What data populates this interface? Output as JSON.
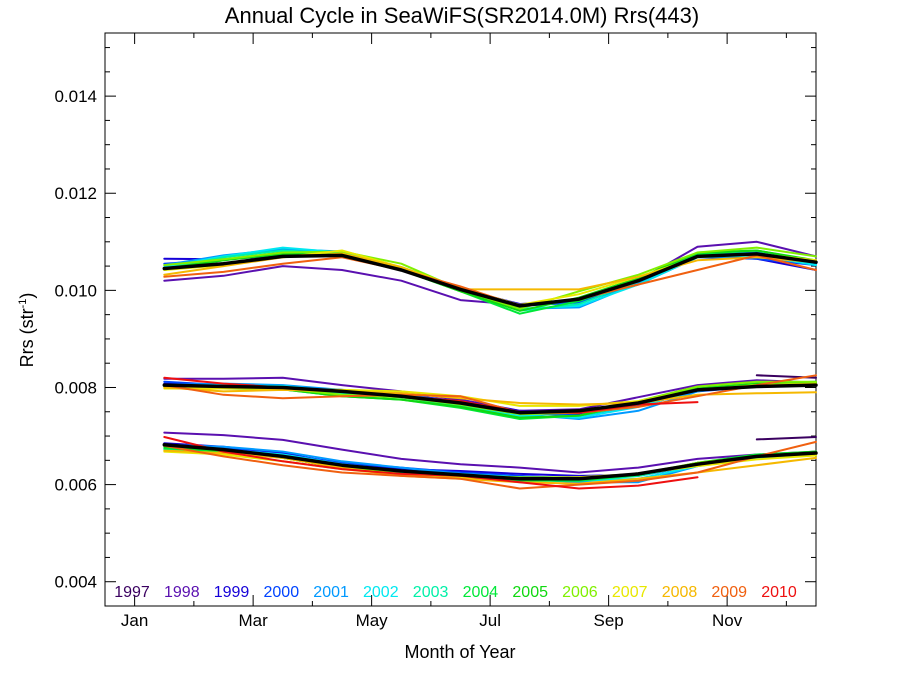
{
  "chart_data": {
    "type": "line",
    "title": "Annual Cycle in SeaWiFS(SR2014.0M) Rrs(443)",
    "xlabel": "Month of Year",
    "ylabel_main": "Rrs (str",
    "ylabel_sup": "-1",
    "ylabel_end": ")",
    "xlim": [
      0.5,
      12.5
    ],
    "ylim": [
      0.0035,
      0.0153
    ],
    "x_ticks": [
      {
        "x": 1,
        "label": "Jan"
      },
      {
        "x": 3,
        "label": "Mar"
      },
      {
        "x": 5,
        "label": "May"
      },
      {
        "x": 7,
        "label": "Jul"
      },
      {
        "x": 9,
        "label": "Sep"
      },
      {
        "x": 11,
        "label": "Nov"
      }
    ],
    "y_ticks": [
      {
        "y": 0.004,
        "label": "0.004"
      },
      {
        "y": 0.006,
        "label": "0.006"
      },
      {
        "y": 0.008,
        "label": "0.008"
      },
      {
        "y": 0.01,
        "label": "0.010"
      },
      {
        "y": 0.012,
        "label": "0.012"
      },
      {
        "y": 0.014,
        "label": "0.014"
      }
    ],
    "grid": false,
    "legend_position": "bottom, inside plot",
    "months": [
      1.5,
      2.5,
      3.5,
      4.5,
      5.5,
      6.5,
      7.5,
      8.5,
      9.5,
      10.5,
      11.5,
      12.5
    ],
    "series": [
      {
        "name": "1997",
        "color": "#3a0060",
        "width": 2,
        "groups": [
          [
            null,
            null,
            null,
            null,
            null,
            null,
            null,
            null,
            null,
            null,
            null,
            null
          ],
          [
            null,
            null,
            null,
            null,
            null,
            null,
            null,
            null,
            null,
            null,
            0.00825,
            0.0082
          ],
          [
            null,
            null,
            null,
            null,
            null,
            null,
            null,
            null,
            null,
            null,
            0.00693,
            0.00698
          ]
        ]
      },
      {
        "name": "1998",
        "color": "#5a10b0",
        "width": 2,
        "groups": [
          [
            0.0102,
            0.0103,
            0.0105,
            0.01042,
            0.0102,
            0.0098,
            0.0097,
            0.0098,
            0.0102,
            0.0109,
            0.011,
            0.0107
          ],
          [
            0.00818,
            0.00818,
            0.0082,
            0.00805,
            0.00792,
            0.00775,
            0.00752,
            0.00755,
            0.0078,
            0.00805,
            0.00815,
            0.0081
          ],
          [
            0.00707,
            0.00702,
            0.00692,
            0.00672,
            0.00653,
            0.00642,
            0.00635,
            0.00625,
            0.00635,
            0.00653,
            0.00662,
            0.00668
          ]
        ]
      },
      {
        "name": "1999",
        "color": "#1500d8",
        "width": 2,
        "groups": [
          [
            0.01065,
            0.01064,
            0.01072,
            0.01071,
            0.01042,
            0.01002,
            0.00972,
            0.00978,
            0.01012,
            0.01072,
            0.01065,
            0.01042
          ],
          [
            0.00808,
            0.00804,
            0.00803,
            0.00792,
            0.00785,
            0.00772,
            0.00752,
            0.00745,
            0.00765,
            0.00795,
            0.00805,
            0.00808
          ],
          [
            0.00685,
            0.00678,
            0.00665,
            0.00642,
            0.00632,
            0.00628,
            0.00622,
            0.00618,
            0.0062,
            0.00642,
            0.00658,
            0.00665
          ]
        ]
      },
      {
        "name": "2000",
        "color": "#0044ff",
        "width": 2,
        "groups": [
          [
            0.01055,
            0.01063,
            0.01078,
            0.01074,
            0.01042,
            0.01002,
            0.00968,
            0.00975,
            0.01012,
            0.01068,
            0.01065,
            0.01052
          ],
          [
            0.00812,
            0.00805,
            0.00802,
            0.00795,
            0.00788,
            0.00768,
            0.00748,
            0.00742,
            0.00762,
            0.00792,
            0.00802,
            0.00806
          ],
          [
            0.00683,
            0.00675,
            0.00662,
            0.00645,
            0.00635,
            0.00625,
            0.00618,
            0.00612,
            0.00618,
            0.0064,
            0.00655,
            0.00662
          ]
        ]
      },
      {
        "name": "2001",
        "color": "#0099ff",
        "width": 2,
        "groups": [
          [
            0.01052,
            0.01072,
            0.01085,
            0.0108,
            0.01042,
            0.01002,
            0.00962,
            0.00965,
            0.01015,
            0.01072,
            0.01078,
            0.01055
          ],
          [
            0.00805,
            0.00808,
            0.00805,
            0.00795,
            0.00785,
            0.00768,
            0.00745,
            0.00735,
            0.00752,
            0.00792,
            0.00808,
            0.00812
          ],
          [
            0.00682,
            0.00678,
            0.00668,
            0.00648,
            0.00635,
            0.00622,
            0.00612,
            0.00605,
            0.00605,
            0.00638,
            0.00658,
            0.00665
          ]
        ]
      },
      {
        "name": "2002",
        "color": "#00e8f0",
        "width": 2,
        "groups": [
          [
            0.01048,
            0.0107,
            0.01088,
            0.01078,
            0.01045,
            0.01002,
            0.00962,
            0.00968,
            0.01012,
            0.01068,
            0.01072,
            0.01052
          ],
          [
            0.00803,
            0.00805,
            0.00803,
            0.00792,
            0.00782,
            0.00765,
            0.00742,
            0.00738,
            0.0076,
            0.00795,
            0.00805,
            0.00808
          ],
          [
            0.00678,
            0.00672,
            0.00662,
            0.00642,
            0.00628,
            0.00622,
            0.00615,
            0.00608,
            0.00612,
            0.00638,
            0.00655,
            0.00665
          ]
        ]
      },
      {
        "name": "2003",
        "color": "#00f0a8",
        "width": 2,
        "groups": [
          [
            0.01045,
            0.01068,
            0.01082,
            0.01076,
            0.01048,
            0.01005,
            0.00958,
            0.00972,
            0.01018,
            0.01072,
            0.01075,
            0.01058
          ],
          [
            0.00802,
            0.00802,
            0.008,
            0.00788,
            0.0078,
            0.00762,
            0.00738,
            0.00742,
            0.00765,
            0.00795,
            0.00805,
            0.00808
          ],
          [
            0.00672,
            0.00668,
            0.00658,
            0.00638,
            0.00625,
            0.00618,
            0.00612,
            0.00608,
            0.00618,
            0.00642,
            0.00658,
            0.00665
          ]
        ]
      },
      {
        "name": "2004",
        "color": "#00e838",
        "width": 2,
        "groups": [
          [
            0.01042,
            0.01062,
            0.01078,
            0.01075,
            0.01042,
            0.00998,
            0.00952,
            0.00978,
            0.01022,
            0.01075,
            0.01082,
            0.0106
          ],
          [
            0.00802,
            0.008,
            0.00796,
            0.00782,
            0.00775,
            0.00758,
            0.00735,
            0.00742,
            0.00768,
            0.00798,
            0.00808,
            0.0081
          ],
          [
            0.00675,
            0.00668,
            0.00655,
            0.00635,
            0.00622,
            0.00615,
            0.00608,
            0.00608,
            0.0062,
            0.00645,
            0.00662,
            0.00668
          ]
        ]
      },
      {
        "name": "2005",
        "color": "#10d810",
        "width": 2,
        "groups": [
          [
            0.01045,
            0.01062,
            0.01075,
            0.01072,
            0.01042,
            0.00998,
            0.00958,
            0.00985,
            0.01025,
            0.01078,
            0.01082,
            0.01062
          ],
          [
            0.00802,
            0.00798,
            0.00796,
            0.00782,
            0.00775,
            0.0076,
            0.00738,
            0.00742,
            0.0077,
            0.00798,
            0.00808,
            0.0081
          ],
          [
            0.00678,
            0.0067,
            0.00655,
            0.00635,
            0.00622,
            0.00618,
            0.00612,
            0.00612,
            0.0062,
            0.00645,
            0.0066,
            0.00668
          ]
        ]
      },
      {
        "name": "2006",
        "color": "#80f000",
        "width": 2,
        "groups": [
          [
            0.01052,
            0.01064,
            0.01078,
            0.0108,
            0.01055,
            0.01002,
            0.00962,
            0.00998,
            0.01032,
            0.01078,
            0.01088,
            0.0107
          ],
          [
            0.00802,
            0.008,
            0.00798,
            0.00785,
            0.0078,
            0.00765,
            0.00745,
            0.00748,
            0.00772,
            0.00802,
            0.00812,
            0.00812
          ],
          [
            0.00682,
            0.00672,
            0.00655,
            0.00635,
            0.00622,
            0.00618,
            0.00615,
            0.00615,
            0.00622,
            0.00645,
            0.00658,
            0.00662
          ]
        ]
      },
      {
        "name": "2007",
        "color": "#e8e800",
        "width": 2,
        "groups": [
          [
            0.01042,
            0.01052,
            0.01068,
            0.01082,
            0.01048,
            0.01005,
            0.0097,
            0.00992,
            0.01028,
            0.01068,
            0.01075,
            0.01062
          ],
          [
            0.00798,
            0.00798,
            0.00798,
            0.00795,
            0.00792,
            0.00782,
            0.00762,
            0.00762,
            0.00772,
            0.00795,
            0.00805,
            0.00808
          ],
          [
            0.00668,
            0.00662,
            0.00648,
            0.00632,
            0.0062,
            0.00615,
            0.00612,
            0.00615,
            0.00622,
            0.00638,
            0.00652,
            0.0066
          ]
        ]
      },
      {
        "name": "2008",
        "color": "#f5b800",
        "width": 2,
        "groups": [
          [
            0.01032,
            0.0105,
            0.01068,
            0.01076,
            0.01048,
            0.01002,
            0.01002,
            0.01002,
            0.01028,
            0.01062,
            0.01068,
            0.01058
          ],
          [
            0.008,
            0.00792,
            0.00795,
            0.00792,
            0.00788,
            0.00778,
            0.00768,
            0.00765,
            0.00768,
            0.00785,
            0.00788,
            0.0079
          ],
          [
            0.0067,
            0.00665,
            0.00655,
            0.00635,
            0.00618,
            0.00612,
            0.00605,
            0.00602,
            0.00612,
            0.00625,
            0.0064,
            0.00655
          ]
        ]
      },
      {
        "name": "2009",
        "color": "#f06010",
        "width": 2,
        "groups": [
          [
            0.01028,
            0.01038,
            0.01055,
            0.01068,
            0.01042,
            0.01008,
            0.00968,
            0.00982,
            0.01012,
            0.01042,
            0.01072,
            0.01042
          ],
          [
            0.00805,
            0.00785,
            0.00778,
            0.00782,
            0.00785,
            0.00782,
            0.00748,
            0.00748,
            0.0076,
            0.00782,
            0.00805,
            0.00825
          ],
          [
            0.0068,
            0.00658,
            0.0064,
            0.00625,
            0.00618,
            0.00612,
            0.00592,
            0.006,
            0.00608,
            0.00625,
            0.00658,
            0.00688
          ]
        ]
      },
      {
        "name": "2010",
        "color": "#ee1010",
        "width": 2,
        "groups": [
          [
            null,
            null,
            null,
            null,
            null,
            null,
            null,
            null,
            null,
            null,
            null,
            null
          ],
          [
            0.0082,
            0.00808,
            0.008,
            0.00792,
            0.00782,
            0.00772,
            0.0075,
            0.00748,
            0.00765,
            0.0077,
            null,
            null
          ],
          [
            0.00698,
            0.00668,
            0.00648,
            0.00632,
            0.00622,
            0.00618,
            0.00605,
            0.00592,
            0.00598,
            0.00615,
            null,
            null
          ]
        ]
      },
      {
        "name": "",
        "color": "#000000",
        "width": 3.5,
        "mean": true,
        "groups": [
          [
            0.01045,
            0.01055,
            0.0107,
            0.01072,
            0.01042,
            0.01002,
            0.00968,
            0.00982,
            0.0102,
            0.0107,
            0.01075,
            0.01058
          ],
          [
            0.00805,
            0.00802,
            0.008,
            0.00792,
            0.00782,
            0.00768,
            0.00748,
            0.00752,
            0.00768,
            0.00795,
            0.00802,
            0.00805
          ],
          [
            0.00682,
            0.00672,
            0.00658,
            0.0064,
            0.00628,
            0.0062,
            0.00612,
            0.00612,
            0.00622,
            0.00642,
            0.00658,
            0.00665
          ]
        ]
      }
    ]
  }
}
